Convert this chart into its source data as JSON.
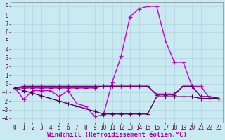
{
  "xlabel": "Windchill (Refroidissement éolien,°C)",
  "xlim": [
    -0.5,
    23.5
  ],
  "ylim": [
    -4.5,
    9.5
  ],
  "xticks": [
    0,
    1,
    2,
    3,
    4,
    5,
    6,
    7,
    8,
    9,
    10,
    11,
    12,
    13,
    14,
    15,
    16,
    17,
    18,
    19,
    20,
    21,
    22,
    23
  ],
  "yticks": [
    -4,
    -3,
    -2,
    -1,
    0,
    1,
    2,
    3,
    4,
    5,
    6,
    7,
    8,
    9
  ],
  "bg_color": "#c8eaf0",
  "grid_color": "#b0d4e0",
  "lines": [
    {
      "x": [
        0,
        1,
        2,
        3,
        4,
        5,
        6,
        7,
        8,
        9,
        10,
        11,
        12,
        13,
        14,
        15,
        16,
        17,
        18,
        19,
        20,
        21,
        22,
        23
      ],
      "y": [
        -0.5,
        -1.8,
        -0.8,
        -0.8,
        -0.8,
        -1.5,
        -0.8,
        -2.3,
        -2.6,
        -3.8,
        -3.6,
        0.2,
        3.2,
        7.8,
        8.7,
        9.0,
        9.0,
        5.0,
        2.5,
        2.5,
        -0.3,
        -0.3,
        -1.7,
        -1.7
      ],
      "color": "#cc00cc",
      "marker": "+",
      "lw": 1.0,
      "ms": 4
    },
    {
      "x": [
        0,
        1,
        2,
        3,
        4,
        5,
        6,
        7,
        8,
        9,
        10,
        11,
        12,
        13,
        14,
        15,
        16,
        17,
        18,
        19,
        20,
        21,
        22,
        23
      ],
      "y": [
        -0.5,
        -0.5,
        -0.5,
        -0.5,
        -0.5,
        -0.5,
        -0.5,
        -0.5,
        -0.5,
        -0.5,
        -0.3,
        -0.3,
        -0.3,
        -0.3,
        -0.3,
        -0.3,
        -1.3,
        -1.3,
        -1.3,
        -0.3,
        -0.3,
        -1.5,
        -1.5,
        -1.7
      ],
      "color": "#990099",
      "marker": "+",
      "lw": 1.0,
      "ms": 4
    },
    {
      "x": [
        0,
        1,
        2,
        3,
        4,
        5,
        6,
        7,
        8,
        9,
        10,
        11,
        12,
        13,
        14,
        15,
        16,
        17,
        18,
        19,
        20,
        21,
        22,
        23
      ],
      "y": [
        -0.5,
        -0.3,
        -0.3,
        -0.3,
        -0.3,
        -0.3,
        -0.3,
        -0.3,
        -0.3,
        -0.3,
        -0.3,
        -0.3,
        -0.3,
        -0.3,
        -0.3,
        -0.3,
        -1.2,
        -1.2,
        -1.2,
        -0.3,
        -0.3,
        -1.5,
        -1.5,
        -1.7
      ],
      "color": "#770077",
      "marker": "+",
      "lw": 1.0,
      "ms": 4
    },
    {
      "x": [
        0,
        1,
        2,
        3,
        4,
        5,
        6,
        7,
        8,
        9,
        10,
        11,
        12,
        13,
        14,
        15,
        16,
        17,
        18,
        19,
        20,
        21,
        22,
        23
      ],
      "y": [
        -0.5,
        -0.8,
        -1.1,
        -1.4,
        -1.7,
        -2.0,
        -2.3,
        -2.6,
        -2.9,
        -3.2,
        -3.5,
        -3.5,
        -3.5,
        -3.5,
        -3.5,
        -3.5,
        -1.5,
        -1.5,
        -1.5,
        -1.5,
        -1.5,
        -1.7,
        -1.7,
        -1.7
      ],
      "color": "#550055",
      "marker": "+",
      "lw": 1.0,
      "ms": 4
    }
  ],
  "tick_fontsize": 5.5,
  "label_fontsize": 6.5
}
